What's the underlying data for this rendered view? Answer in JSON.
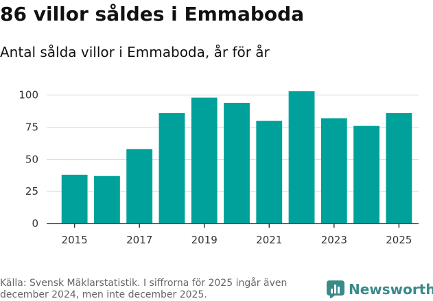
{
  "header": {
    "title": "86 villor såldes i Emmaboda",
    "subtitle": "Antal sålda villor i Emmaboda, år för år"
  },
  "footer": {
    "source": "Källa: Svensk Mäklarstatistik. I siffrorna för 2025 ingår även december 2024, men inte december 2025.",
    "brand": "Newsworthy",
    "brand_icon": "newsworthy-logo-icon"
  },
  "colors": {
    "bar": "#00a19a",
    "grid": "#d9d9d9",
    "axis": "#333333",
    "brand": "#3a8a8a"
  },
  "chart_data": {
    "type": "bar",
    "title": "86 villor såldes i Emmaboda",
    "subtitle": "Antal sålda villor i Emmaboda, år för år",
    "xlabel": "",
    "ylabel": "",
    "categories": [
      "2015",
      "2016",
      "2017",
      "2018",
      "2019",
      "2020",
      "2021",
      "2022",
      "2023",
      "2024",
      "2025"
    ],
    "values": [
      38,
      37,
      58,
      86,
      98,
      94,
      80,
      103,
      82,
      76,
      86
    ],
    "x_tick_labels": [
      "2015",
      "2017",
      "2019",
      "2021",
      "2023",
      "2025"
    ],
    "y_ticks": [
      0,
      25,
      50,
      75,
      100
    ],
    "ylim": [
      0,
      110
    ],
    "grid": true,
    "legend": "none"
  }
}
